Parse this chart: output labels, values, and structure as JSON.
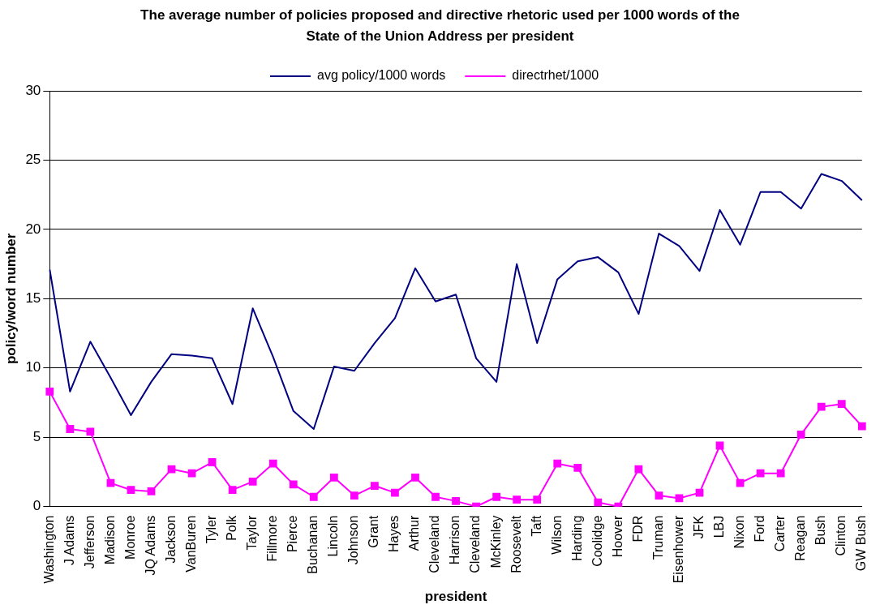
{
  "chart_data": {
    "type": "line",
    "title": "The average number of policies proposed and directive rhetoric used per 1000 words of the State of the Union Address per president",
    "xlabel": "president",
    "ylabel": "policy/word number",
    "categories": [
      "Washington",
      "J Adams",
      "Jefferson",
      "Madison",
      "Monroe",
      "JQ Adams",
      "Jackson",
      "VanBuren",
      "Tyler",
      "Polk",
      "Taylor",
      "Fillmore",
      "Pierce",
      "Buchanan",
      "Lincoln",
      "Johnson",
      "Grant",
      "Hayes",
      "Arthur",
      "Cleveland",
      "Harrison",
      "Cleveland",
      "McKinley",
      "Roosevelt",
      "Taft",
      "Wilson",
      "Harding",
      "Coolidge",
      "Hoover",
      "FDR",
      "Truman",
      "Eisenhower",
      "JFK",
      "LBJ",
      "Nixon",
      "Ford",
      "Carter",
      "Reagan",
      "Bush",
      "Clinton",
      "GW Bush"
    ],
    "series": [
      {
        "name": "avg policy/1000 words",
        "color": "#000080",
        "marker": "none",
        "values": [
          17.1,
          8.3,
          11.9,
          9.3,
          6.6,
          9.0,
          11.0,
          10.9,
          10.7,
          7.4,
          14.3,
          10.8,
          6.9,
          5.6,
          10.1,
          9.8,
          11.8,
          13.6,
          17.2,
          14.8,
          15.3,
          10.7,
          9.0,
          17.5,
          11.8,
          16.4,
          17.7,
          18.0,
          16.9,
          13.9,
          19.7,
          18.8,
          17.0,
          21.4,
          18.9,
          22.7,
          22.7,
          21.5,
          24.0,
          23.5,
          22.1
        ]
      },
      {
        "name": "directrhet/1000",
        "color": "#ff00ff",
        "marker": "square",
        "values": [
          8.3,
          5.6,
          5.4,
          1.7,
          1.2,
          1.1,
          2.7,
          2.4,
          3.2,
          1.2,
          1.8,
          3.1,
          1.6,
          0.7,
          2.1,
          0.8,
          1.5,
          1.0,
          2.1,
          0.7,
          0.4,
          0.0,
          0.7,
          0.5,
          0.5,
          3.1,
          2.8,
          0.3,
          0.0,
          2.7,
          0.8,
          0.6,
          1.0,
          4.4,
          1.7,
          2.4,
          2.4,
          5.2,
          7.2,
          7.4,
          5.8
        ]
      }
    ],
    "ylim": [
      0,
      30
    ],
    "yticks": [
      0,
      5,
      10,
      15,
      20,
      25,
      30
    ],
    "grid": "y",
    "legend": "top"
  }
}
